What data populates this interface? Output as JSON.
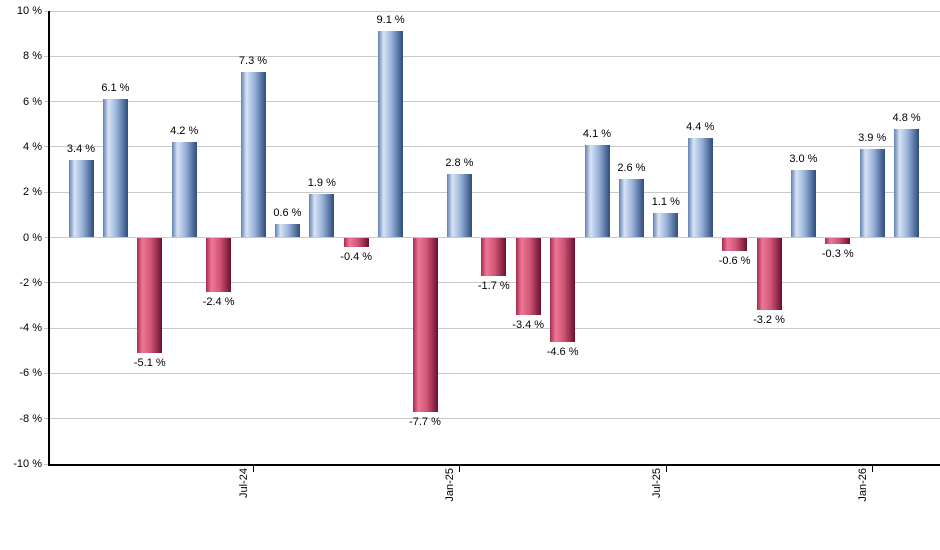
{
  "chart_data": {
    "type": "bar",
    "title": "",
    "xlabel": "",
    "ylabel": "",
    "ylim": [
      -10,
      10
    ],
    "y_tick_step": 2,
    "grid": "horizontal",
    "legend": "none",
    "y_tick_labels": [
      "10 %",
      "8 %",
      "6 %",
      "4 %",
      "2 %",
      "0 %",
      "-2 %",
      "-4 %",
      "-6 %",
      "-8 %",
      "-10 %"
    ],
    "values": [
      3.4,
      6.1,
      -5.1,
      4.2,
      -2.4,
      7.3,
      0.6,
      1.9,
      -0.4,
      9.1,
      -7.7,
      2.8,
      -1.7,
      -3.4,
      -4.6,
      4.1,
      2.6,
      1.1,
      4.4,
      -0.6,
      -3.2,
      3.0,
      -0.3,
      3.9,
      4.8
    ],
    "bar_labels": [
      "3.4 %",
      "6.1 %",
      "-5.1 %",
      "4.2 %",
      "-2.4 %",
      "7.3 %",
      "0.6 %",
      "1.9 %",
      "-0.4 %",
      "9.1 %",
      "-7.7 %",
      "2.8 %",
      "-1.7 %",
      "-3.4 %",
      "-4.6 %",
      "4.1 %",
      "2.6 %",
      "1.1 %",
      "4.4 %",
      "-0.6 %",
      "-3.2 %",
      "3.0 %",
      "-0.3 %",
      "3.9 %",
      "4.8 %"
    ],
    "x_ticks": [
      {
        "bar_index": 5,
        "label": "Jul-24"
      },
      {
        "bar_index": 11,
        "label": "Jan-25"
      },
      {
        "bar_index": 17,
        "label": "Jul-25"
      },
      {
        "bar_index": 23,
        "label": "Jan-26"
      }
    ],
    "colors": {
      "positive_edge": "#5f80b2",
      "positive_highlight": "#d9e3f4",
      "positive_dark": "#2d4c7c",
      "negative_edge": "#a22b50",
      "negative_highlight": "#ef7795",
      "negative_dark": "#6e0f2e",
      "gridline": "#c9c9c9",
      "axis": "#000000",
      "label_text": "#000000"
    }
  }
}
